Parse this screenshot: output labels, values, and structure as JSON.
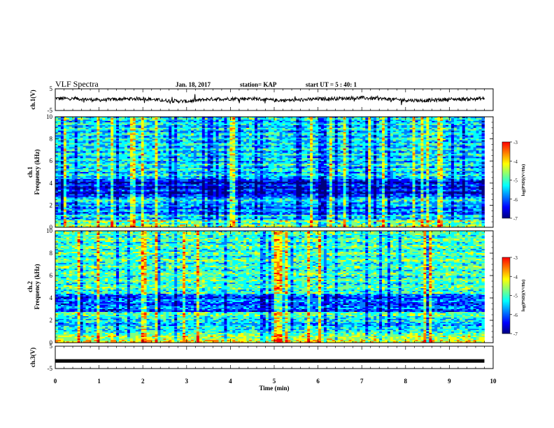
{
  "header": {
    "title": "VLF Spectra",
    "date": "Jan. 18, 2017",
    "station": "station= KAP",
    "start_ut": "start UT = 5 : 40: 1"
  },
  "colors": {
    "cmap": [
      "#00007f",
      "#0000ff",
      "#007fff",
      "#00ffff",
      "#7fff7f",
      "#ffff00",
      "#ff7f00",
      "#ff0000",
      "#ffffff"
    ]
  },
  "chart_data": [
    {
      "type": "line",
      "ylabel": "ch.1(V)",
      "ylim": [
        -5,
        5
      ],
      "y_ticks": [
        "5",
        "-5"
      ],
      "series": [
        {
          "x": [
            0,
            0.5,
            1,
            1.5,
            2,
            2.5,
            3,
            3.5,
            4,
            4.5,
            5,
            5.5,
            6,
            6.5,
            7,
            7.5,
            8,
            8.5,
            9,
            9.5,
            9.8
          ],
          "values": [
            0.6,
            0.4,
            -0.2,
            0.3,
            0.5,
            -0.4,
            -0.8,
            0.2,
            0.4,
            0.5,
            -0.3,
            -0.2,
            0.3,
            0.6,
            0.8,
            0.4,
            -0.2,
            -0.4,
            0.2,
            0.3,
            0.5
          ]
        }
      ]
    },
    {
      "type": "heatmap",
      "ylabel_top": "ch.1",
      "ylabel": "Frequency (kHz)",
      "ylim": [
        0,
        10
      ],
      "y_ticks": [
        "0",
        "2",
        "4",
        "6",
        "8",
        "10"
      ],
      "colorbar": {
        "label": "log(PSD)(V²/Hz)",
        "ticks": [
          "-3",
          "-4",
          "-5",
          "-6",
          "-7"
        ],
        "range": [
          -7,
          -3
        ]
      }
    },
    {
      "type": "heatmap",
      "ylabel_top": "ch.2",
      "ylabel": "Frequency (kHz)",
      "ylim": [
        0,
        10
      ],
      "y_ticks": [
        "0",
        "2",
        "4",
        "6",
        "8",
        "10"
      ],
      "colorbar": {
        "label": "log(PSD)(V²/Hz)",
        "ticks": [
          "-3",
          "-4",
          "-5",
          "-6",
          "-7"
        ],
        "range": [
          -7,
          -3
        ]
      }
    },
    {
      "type": "line",
      "ylabel": "ch.3(V)",
      "ylim": [
        -5,
        5
      ],
      "y_ticks": [
        "5",
        "-5"
      ],
      "series": [
        {
          "x": [
            0,
            9.8
          ],
          "values": [
            -1.6,
            -1.6
          ]
        }
      ]
    }
  ],
  "xaxis": {
    "label": "Time (min)",
    "ticks": [
      "0",
      "1",
      "2",
      "3",
      "4",
      "5",
      "6",
      "7",
      "8",
      "9",
      "10"
    ],
    "range": [
      0,
      10
    ]
  }
}
